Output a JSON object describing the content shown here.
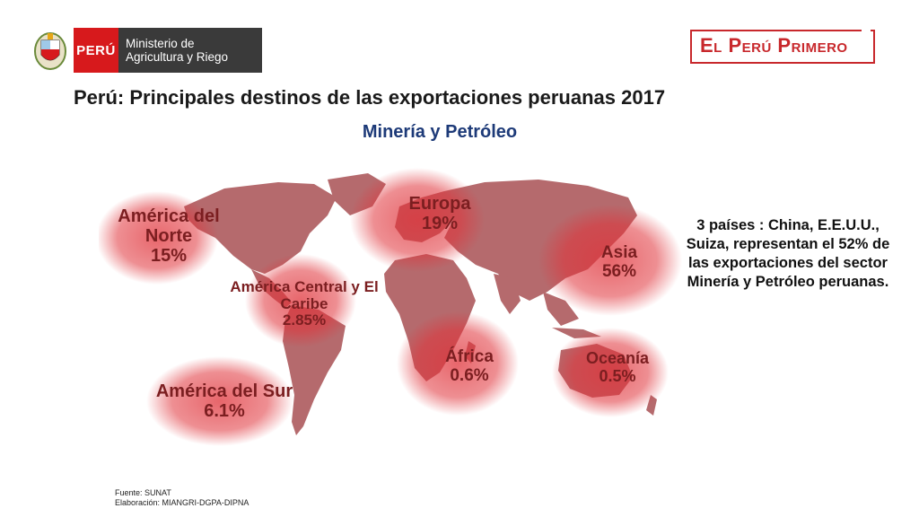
{
  "header": {
    "peru_label": "PERÚ",
    "ministry_label": "Ministerio de Agricultura y Riego",
    "brand": "El Perú Primero"
  },
  "title": "Perú: Principales destinos de las exportaciones peruanas 2017",
  "subtitle": "Minería y Petróleo",
  "regions": {
    "north_america": {
      "name": "América del Norte",
      "value": "15%"
    },
    "europe": {
      "name": "Europa",
      "value": "19%"
    },
    "asia": {
      "name": "Asia",
      "value": "56%"
    },
    "central_america": {
      "name": "América Central y El Caribe",
      "value": "2.85%"
    },
    "africa": {
      "name": "África",
      "value": "0.6%"
    },
    "oceania": {
      "name": "Oceanía",
      "value": "0.5%"
    },
    "south_america": {
      "name": "América del Sur",
      "value": "6.1%"
    }
  },
  "side_note": "3 países : China, E.E.U.U., Suiza, representan el 52% de las exportaciones del sector Minería y Petróleo peruanas.",
  "source": {
    "line1": "Fuente: SUNAT",
    "line2": "Elaboración: MIANGRI-DGPA-DIPNA"
  },
  "colors": {
    "map_fill": "#b56a6d",
    "highlight": "#e0333a",
    "label": "#7b1e20",
    "subtitle": "#1d3a78"
  }
}
